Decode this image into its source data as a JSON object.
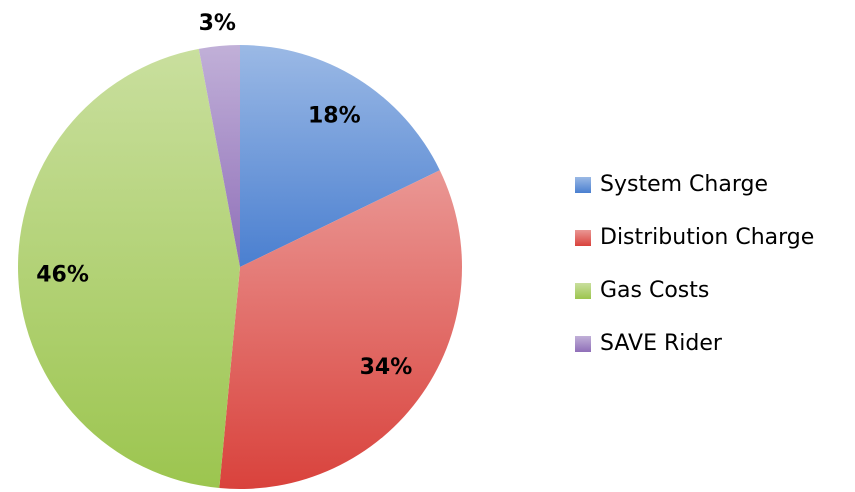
{
  "chart_data": {
    "type": "pie",
    "categories": [
      "System Charge",
      "Distribution Charge",
      "Gas Costs",
      "SAVE Rider"
    ],
    "values": [
      18,
      34,
      46,
      3
    ],
    "value_labels": [
      "18%",
      "34%",
      "46%",
      "3%"
    ],
    "colors": [
      "#4a7fd0",
      "#d9423c",
      "#9cc54f",
      "#8f6fb8"
    ],
    "legend": "right"
  }
}
